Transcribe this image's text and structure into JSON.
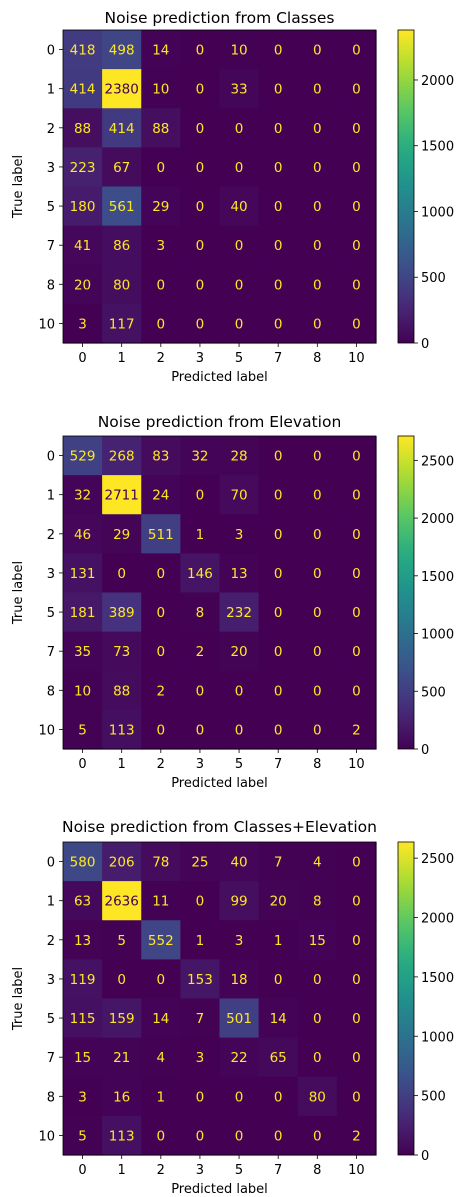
{
  "chart_data": [
    {
      "type": "heatmap",
      "title": "Noise prediction from Classes",
      "xlabel": "Predicted label",
      "ylabel": "True label",
      "x_labels": [
        "0",
        "1",
        "2",
        "3",
        "5",
        "7",
        "8",
        "10"
      ],
      "y_labels": [
        "0",
        "1",
        "2",
        "3",
        "5",
        "7",
        "8",
        "10"
      ],
      "colormap": "viridis",
      "vmax": 2380,
      "colorbar_ticks": [
        0,
        500,
        1000,
        1500,
        2000
      ],
      "matrix": [
        [
          418,
          498,
          14,
          0,
          10,
          0,
          0,
          0
        ],
        [
          414,
          2380,
          10,
          0,
          33,
          0,
          0,
          0
        ],
        [
          88,
          414,
          88,
          0,
          0,
          0,
          0,
          0
        ],
        [
          223,
          67,
          0,
          0,
          0,
          0,
          0,
          0
        ],
        [
          180,
          561,
          29,
          0,
          40,
          0,
          0,
          0
        ],
        [
          41,
          86,
          3,
          0,
          0,
          0,
          0,
          0
        ],
        [
          20,
          80,
          0,
          0,
          0,
          0,
          0,
          0
        ],
        [
          3,
          117,
          0,
          0,
          0,
          0,
          0,
          0
        ]
      ]
    },
    {
      "type": "heatmap",
      "title": "Noise prediction from Elevation",
      "xlabel": "Predicted label",
      "ylabel": "True label",
      "x_labels": [
        "0",
        "1",
        "2",
        "3",
        "5",
        "7",
        "8",
        "10"
      ],
      "y_labels": [
        "0",
        "1",
        "2",
        "3",
        "5",
        "7",
        "8",
        "10"
      ],
      "colormap": "viridis",
      "vmax": 2711,
      "colorbar_ticks": [
        0,
        500,
        1000,
        1500,
        2000,
        2500
      ],
      "matrix": [
        [
          529,
          268,
          83,
          32,
          28,
          0,
          0,
          0
        ],
        [
          32,
          2711,
          24,
          0,
          70,
          0,
          0,
          0
        ],
        [
          46,
          29,
          511,
          1,
          3,
          0,
          0,
          0
        ],
        [
          131,
          0,
          0,
          146,
          13,
          0,
          0,
          0
        ],
        [
          181,
          389,
          0,
          8,
          232,
          0,
          0,
          0
        ],
        [
          35,
          73,
          0,
          2,
          20,
          0,
          0,
          0
        ],
        [
          10,
          88,
          2,
          0,
          0,
          0,
          0,
          0
        ],
        [
          5,
          113,
          0,
          0,
          0,
          0,
          0,
          2
        ]
      ]
    },
    {
      "type": "heatmap",
      "title": "Noise prediction from Classes+Elevation",
      "xlabel": "Predicted label",
      "ylabel": "True label",
      "x_labels": [
        "0",
        "1",
        "2",
        "3",
        "5",
        "7",
        "8",
        "10"
      ],
      "y_labels": [
        "0",
        "1",
        "2",
        "3",
        "5",
        "7",
        "8",
        "10"
      ],
      "colormap": "viridis",
      "vmax": 2636,
      "colorbar_ticks": [
        0,
        500,
        1000,
        1500,
        2000,
        2500
      ],
      "matrix": [
        [
          580,
          206,
          78,
          25,
          40,
          7,
          4,
          0
        ],
        [
          63,
          2636,
          11,
          0,
          99,
          20,
          8,
          0
        ],
        [
          13,
          5,
          552,
          1,
          3,
          1,
          15,
          0
        ],
        [
          119,
          0,
          0,
          153,
          18,
          0,
          0,
          0
        ],
        [
          115,
          159,
          14,
          7,
          501,
          14,
          0,
          0
        ],
        [
          15,
          21,
          4,
          3,
          22,
          65,
          0,
          0
        ],
        [
          3,
          16,
          1,
          0,
          0,
          0,
          80,
          0
        ],
        [
          5,
          113,
          0,
          0,
          0,
          0,
          0,
          2
        ]
      ]
    }
  ]
}
